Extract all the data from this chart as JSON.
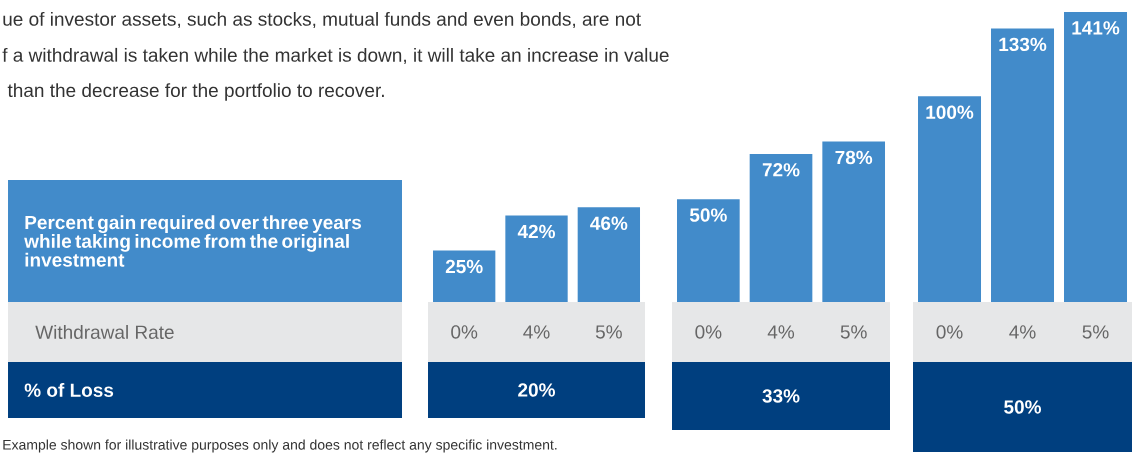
{
  "chart_data": [
    {
      "type": "other",
      "title": "Percent gain required over three years while taking income from the original investment",
      "xlabel": "Withdrawal Rate",
      "ylabel": "% of Loss",
      "annotations": [
        "ue of investor assets, such as stocks, mutual funds and even bonds, are not",
        "f a withdrawal is taken while the market is down, it will take an increase in value",
        " than the decrease for the portfolio to recover.",
        "Example shown for illustrative purposes only and does not reflect any specific investment."
      ]
    },
    {
      "type": "bar",
      "categories": [
        "0%",
        "4%",
        "5%"
      ],
      "values": [
        25,
        42,
        46
      ],
      "value_labels": [
        "25%",
        "42%",
        "46%"
      ],
      "color": "#428bca",
      "tick_labels": "x",
      "xlabel": "20%"
    },
    {
      "type": "bar",
      "categories": [
        "0%",
        "4%",
        "5%"
      ],
      "values": [
        50,
        72,
        78
      ],
      "value_labels": [
        "50%",
        "72%",
        "78%"
      ],
      "color": "#428bca",
      "tick_labels": "x",
      "xlabel": "33%"
    },
    {
      "type": "bar",
      "categories": [
        "0%",
        "4%",
        "5%"
      ],
      "values": [
        100,
        133,
        141
      ],
      "value_labels": [
        "100%",
        "133%",
        "141%"
      ],
      "color": "#428bca",
      "tick_labels": "x",
      "xlabel": "50%"
    }
  ]
}
